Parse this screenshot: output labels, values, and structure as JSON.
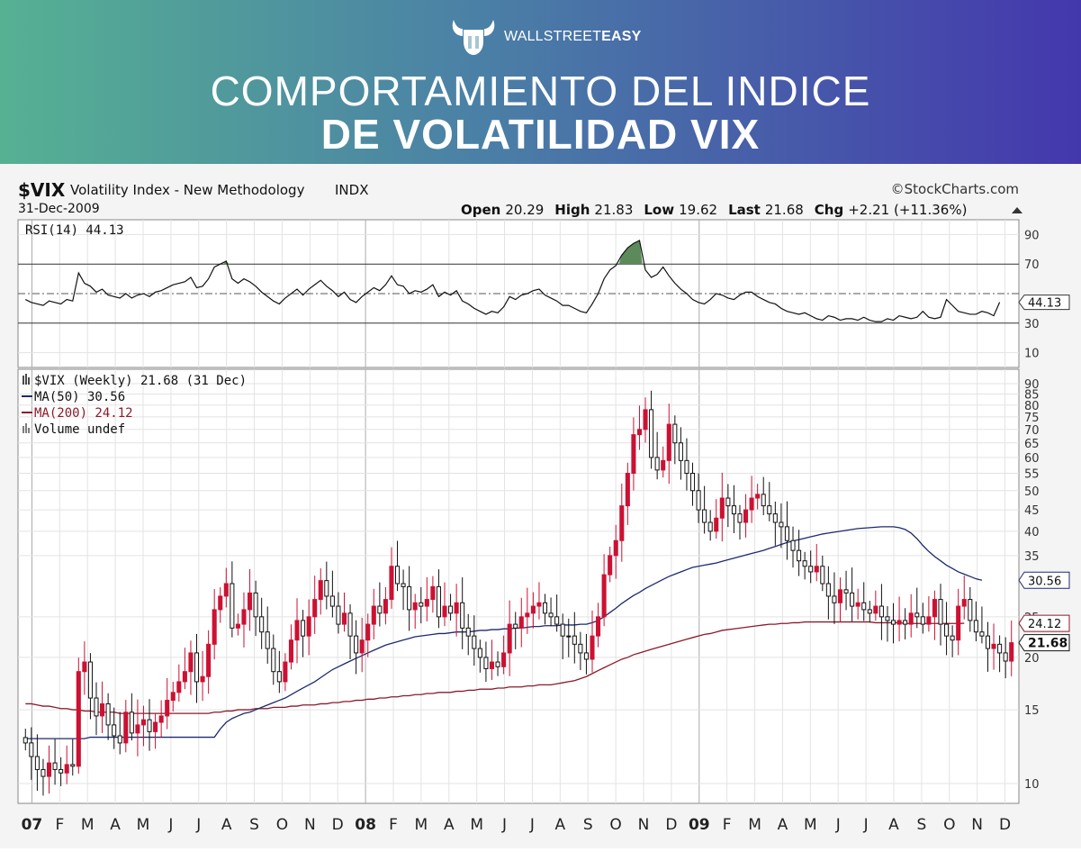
{
  "banner": {
    "brand_prefix": "WALLSTREET",
    "brand_suffix": "EASY",
    "title_line1": "COMPORTAMIENTO DEL INDICE",
    "title_line2": "DE VOLATILIDAD VIX"
  },
  "chart_header": {
    "symbol": "$VIX",
    "name": "Volatility Index - New Methodology",
    "exchange": "INDX",
    "date": "31-Dec-2009",
    "source": "©StockCharts.com",
    "open_label": "Open",
    "open_value": "20.29",
    "high_label": "High",
    "high_value": "21.83",
    "low_label": "Low",
    "low_value": "19.62",
    "last_label": "Last",
    "last_value": "21.68",
    "chg_label": "Chg",
    "chg_value": "+2.21 (+11.36%)"
  },
  "rsi_panel": {
    "label": "RSI(14) 44.13",
    "current": 44.13,
    "current_label": "44.13",
    "levels": [
      90,
      70,
      50,
      30,
      10
    ],
    "level_labels": [
      "90",
      "70",
      "50",
      "30",
      "10"
    ]
  },
  "price_panel": {
    "legend": [
      {
        "label": "$VIX (Weekly) 21.68 (31 Dec)",
        "color": "#000000"
      },
      {
        "label": "MA(50) 30.56",
        "color": "#1c2a6e"
      },
      {
        "label": "MA(200) 24.12",
        "color": "#8b1a2b"
      },
      {
        "label": "Volume undef",
        "color": "#555555"
      }
    ],
    "y_ticks": [
      90,
      85,
      80,
      75,
      70,
      65,
      60,
      55,
      50,
      45,
      40,
      35,
      25,
      20,
      15,
      10
    ],
    "y_tick_labels": [
      "90",
      "85",
      "80",
      "75",
      "70",
      "65",
      "60",
      "55",
      "50",
      "45",
      "40",
      "35",
      "25",
      "20",
      "15",
      "10"
    ],
    "value_tags": [
      {
        "label": "30.56",
        "value": 30.56,
        "style": "outline"
      },
      {
        "label": "24.12",
        "value": 24.12,
        "style": "outline-red"
      },
      {
        "label": "21.68",
        "value": 21.68,
        "style": "bold"
      }
    ]
  },
  "x_axis": {
    "labels": [
      "07",
      "F",
      "M",
      "A",
      "M",
      "J",
      "J",
      "A",
      "S",
      "O",
      "N",
      "D",
      "08",
      "F",
      "M",
      "A",
      "M",
      "J",
      "J",
      "A",
      "S",
      "O",
      "N",
      "D",
      "09",
      "F",
      "M",
      "A",
      "M",
      "J",
      "J",
      "A",
      "S",
      "O",
      "N",
      "D"
    ],
    "bold": [
      0,
      12,
      24
    ]
  },
  "colors": {
    "up": "#000000",
    "down": "#cc1133",
    "ma50": "#1c2a6e",
    "ma200": "#8b1a2b",
    "rsi_fill": "#5d8a5a"
  },
  "chart_data": {
    "type": "candlestick",
    "interval": "weekly",
    "y_scale": "log",
    "ylim": [
      10,
      90
    ],
    "rsi_ylim": [
      0,
      100
    ],
    "x_range": [
      "2007-01",
      "2009-12"
    ],
    "close": [
      12.5,
      11.6,
      10.8,
      10.4,
      11.2,
      10.8,
      10.6,
      11.1,
      11.0,
      18.5,
      19.5,
      16.0,
      14.5,
      15.5,
      13.8,
      13.0,
      12.5,
      14.8,
      13.2,
      13.8,
      14.2,
      13.3,
      14.0,
      14.5,
      15.8,
      16.5,
      17.5,
      18.5,
      20.5,
      17.5,
      18.0,
      21.5,
      26.0,
      28.0,
      30.0,
      23.5,
      24.0,
      26.0,
      28.5,
      25.0,
      23.0,
      21.0,
      18.5,
      17.5,
      19.5,
      22.0,
      24.5,
      22.5,
      25.0,
      27.5,
      30.5,
      28.0,
      26.5,
      24.0,
      25.5,
      22.5,
      20.5,
      22.0,
      24.0,
      26.5,
      25.5,
      27.5,
      33.0,
      30.0,
      29.5,
      26.0,
      27.0,
      26.5,
      27.5,
      29.5,
      25.0,
      26.5,
      25.5,
      27.0,
      23.5,
      22.5,
      21.0,
      20.0,
      18.8,
      19.5,
      19.0,
      20.5,
      24.0,
      23.5,
      25.0,
      25.5,
      26.5,
      27.0,
      25.5,
      25.0,
      24.0,
      22.5,
      22.5,
      21.5,
      20.5,
      19.8,
      22.5,
      25.0,
      31.5,
      35.0,
      38.0,
      46.0,
      55.0,
      68.0,
      70.0,
      78.0,
      60.0,
      56.0,
      59.0,
      72.0,
      65.0,
      59.0,
      55.0,
      50.0,
      45.0,
      42.0,
      40.0,
      43.0,
      48.0,
      46.0,
      44.0,
      42.0,
      45.0,
      48.0,
      49.0,
      46.0,
      44.0,
      42.0,
      41.0,
      38.0,
      36.0,
      34.0,
      33.0,
      32.0,
      33.0,
      30.0,
      28.0,
      27.0,
      29.0,
      28.5,
      26.5,
      27.0,
      26.0,
      25.5,
      26.5,
      25.0,
      24.5,
      24.0,
      24.5,
      24.0,
      25.5,
      25.0,
      24.0,
      25.0,
      27.5,
      24.0,
      22.5,
      22.0,
      26.5,
      27.5,
      24.5,
      23.0,
      22.5,
      21.0,
      21.5,
      20.5,
      19.6,
      21.68
    ],
    "ma50": [
      12.8,
      12.8,
      12.8,
      12.8,
      12.8,
      12.8,
      12.8,
      12.8,
      12.8,
      12.8,
      12.8,
      12.9,
      12.9,
      12.9,
      12.9,
      12.9,
      12.9,
      12.9,
      12.9,
      12.9,
      12.9,
      12.9,
      12.9,
      12.9,
      12.9,
      12.9,
      12.9,
      12.9,
      12.9,
      12.9,
      12.9,
      12.9,
      12.9,
      13.5,
      14.0,
      14.3,
      14.5,
      14.7,
      14.8,
      15.0,
      15.2,
      15.4,
      15.6,
      15.8,
      16.0,
      16.3,
      16.6,
      16.9,
      17.2,
      17.5,
      17.9,
      18.3,
      18.7,
      19.0,
      19.3,
      19.6,
      19.9,
      20.2,
      20.5,
      20.8,
      21.1,
      21.4,
      21.6,
      21.8,
      22.0,
      22.2,
      22.4,
      22.5,
      22.6,
      22.7,
      22.8,
      22.8,
      22.9,
      23.0,
      23.0,
      23.0,
      23.1,
      23.2,
      23.2,
      23.3,
      23.3,
      23.4,
      23.4,
      23.5,
      23.5,
      23.6,
      23.7,
      23.7,
      23.8,
      23.8,
      23.8,
      23.9,
      23.9,
      23.9,
      24.0,
      24.0,
      24.2,
      24.5,
      25.0,
      25.6,
      26.2,
      26.9,
      27.5,
      28.1,
      28.6,
      29.2,
      29.7,
      30.2,
      30.7,
      31.2,
      31.6,
      32.0,
      32.4,
      32.8,
      33.0,
      33.2,
      33.4,
      33.6,
      33.9,
      34.2,
      34.5,
      34.8,
      35.1,
      35.4,
      35.7,
      36.0,
      36.4,
      36.8,
      37.2,
      37.6,
      37.9,
      38.2,
      38.5,
      38.8,
      39.1,
      39.4,
      39.6,
      39.8,
      40.0,
      40.2,
      40.4,
      40.6,
      40.7,
      40.8,
      40.9,
      41.0,
      41.0,
      41.0,
      40.8,
      40.4,
      39.6,
      38.4,
      37.0,
      35.8,
      34.8,
      34.0,
      33.2,
      32.6,
      32.0,
      31.6,
      31.2,
      30.8,
      30.56
    ],
    "ma200": [
      15.5,
      15.5,
      15.4,
      15.3,
      15.3,
      15.2,
      15.1,
      15.1,
      15.0,
      15.0,
      14.9,
      14.9,
      14.8,
      14.8,
      14.8,
      14.8,
      14.7,
      14.7,
      14.7,
      14.7,
      14.7,
      14.7,
      14.7,
      14.7,
      14.7,
      14.7,
      14.7,
      14.7,
      14.7,
      14.7,
      14.7,
      14.7,
      14.8,
      14.8,
      14.9,
      14.9,
      15.0,
      15.0,
      15.0,
      15.1,
      15.1,
      15.1,
      15.2,
      15.2,
      15.2,
      15.3,
      15.3,
      15.4,
      15.4,
      15.4,
      15.5,
      15.5,
      15.6,
      15.6,
      15.7,
      15.7,
      15.8,
      15.8,
      15.9,
      15.9,
      16.0,
      16.0,
      16.1,
      16.1,
      16.2,
      16.2,
      16.3,
      16.3,
      16.4,
      16.4,
      16.5,
      16.5,
      16.5,
      16.6,
      16.6,
      16.7,
      16.7,
      16.8,
      16.8,
      16.8,
      16.9,
      16.9,
      17.0,
      17.0,
      17.0,
      17.1,
      17.1,
      17.2,
      17.2,
      17.2,
      17.3,
      17.4,
      17.5,
      17.6,
      17.8,
      18.0,
      18.3,
      18.6,
      18.9,
      19.2,
      19.5,
      19.8,
      20.0,
      20.3,
      20.5,
      20.7,
      20.9,
      21.1,
      21.3,
      21.5,
      21.7,
      21.9,
      22.1,
      22.3,
      22.5,
      22.7,
      22.8,
      23.0,
      23.2,
      23.3,
      23.4,
      23.5,
      23.6,
      23.7,
      23.8,
      23.9,
      24.0,
      24.0,
      24.1,
      24.1,
      24.2,
      24.2,
      24.3,
      24.3,
      24.3,
      24.3,
      24.3,
      24.3,
      24.3,
      24.3,
      24.3,
      24.3,
      24.3,
      24.3,
      24.2,
      24.2,
      24.2,
      24.2,
      24.2,
      24.1,
      24.1,
      24.1,
      24.1,
      24.1,
      24.1,
      24.1,
      24.1,
      24.1,
      24.1,
      24.12
    ],
    "rsi": [
      46,
      44,
      43,
      42,
      45,
      44,
      43,
      46,
      45,
      64,
      57,
      55,
      51,
      53,
      49,
      48,
      47,
      50,
      47,
      49,
      50,
      48,
      51,
      52,
      54,
      56,
      57,
      58,
      61,
      54,
      55,
      60,
      68,
      70,
      72,
      60,
      57,
      60,
      58,
      55,
      51,
      48,
      45,
      43,
      47,
      50,
      53,
      49,
      53,
      56,
      59,
      55,
      52,
      48,
      51,
      46,
      44,
      48,
      51,
      54,
      52,
      56,
      62,
      56,
      55,
      50,
      52,
      51,
      53,
      56,
      48,
      51,
      49,
      52,
      45,
      43,
      40,
      38,
      36,
      38,
      37,
      41,
      48,
      46,
      49,
      50,
      52,
      53,
      49,
      47,
      45,
      42,
      42,
      40,
      38,
      37,
      43,
      50,
      60,
      66,
      69,
      76,
      81,
      84,
      86,
      66,
      61,
      63,
      68,
      62,
      57,
      53,
      50,
      46,
      44,
      43,
      46,
      50,
      49,
      47,
      46,
      49,
      51,
      51,
      48,
      46,
      44,
      43,
      40,
      38,
      37,
      36,
      37,
      35,
      33,
      32,
      35,
      34,
      32,
      33,
      33,
      32,
      34,
      32,
      31,
      31,
      33,
      32,
      35,
      34,
      33,
      34,
      38,
      34,
      33,
      34,
      46,
      42,
      38,
      37,
      36,
      36,
      38,
      37,
      35,
      44.13
    ]
  }
}
